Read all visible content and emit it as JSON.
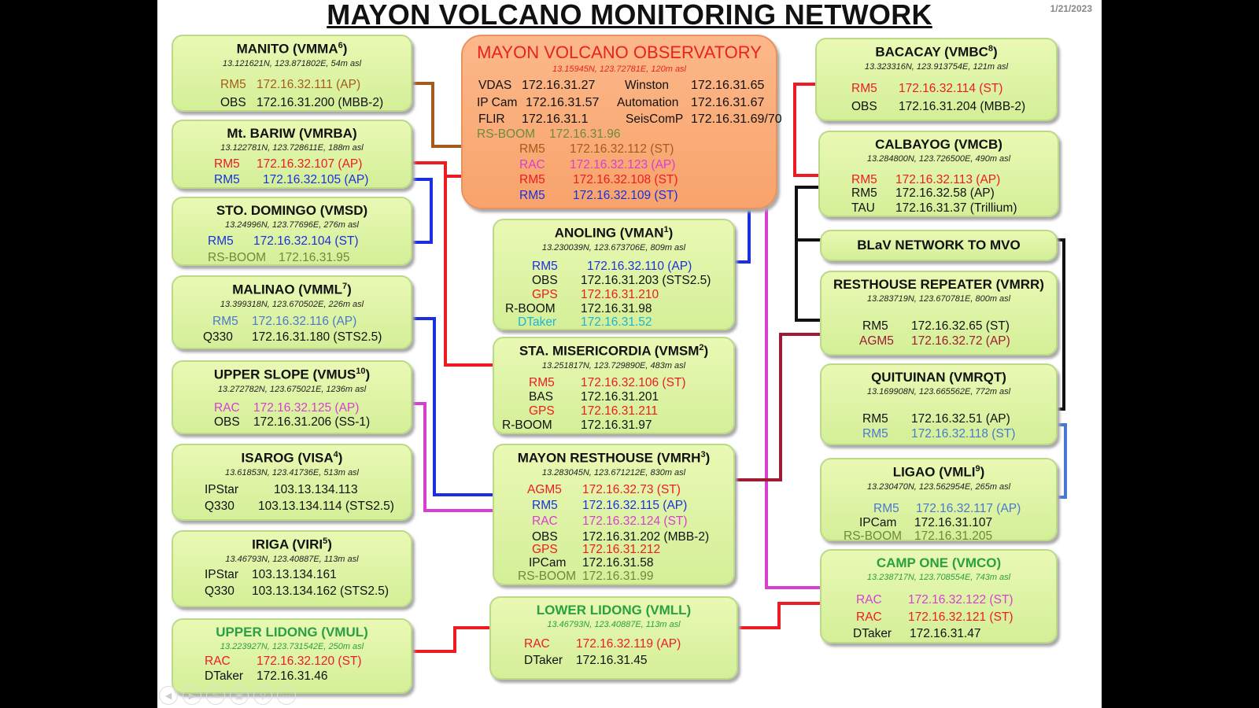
{
  "title": "MAYON VOLCANO MONITORING NETWORK",
  "date": "1/21/2023",
  "colors": {
    "black": "#111111",
    "red": "#ee1b22",
    "blue": "#1a2fe0",
    "lblue": "#4a78d0",
    "brown": "#a35c1b",
    "olive": "#6d8a3a",
    "magenta": "#d63fd0",
    "cyan": "#1fb3d6",
    "darkred": "#9e1b33",
    "station_fill": "#dff5a6",
    "observatory_fill": "#fba978"
  },
  "observatory": {
    "name": "MAYON VOLCANO OBSERVATORY",
    "coords": "13.15945N, 123.72781E, 120m asl",
    "services": [
      {
        "label": "VDAS",
        "value": "172.16.31.27"
      },
      {
        "label": "Winston",
        "value": "172.16.31.65"
      },
      {
        "label": "IP Cam",
        "value": "172.16.31.57"
      },
      {
        "label": "Automation",
        "value": "172.16.31.67"
      },
      {
        "label": "FLIR",
        "value": "172.16.31.1"
      },
      {
        "label": "SeisComP",
        "value": "172.16.31.69/70"
      }
    ],
    "links": [
      {
        "label": "RS-BOOM",
        "value": "172.16.31.96"
      },
      {
        "label": "RM5",
        "value": "172.16.32.112 (ST)"
      },
      {
        "label": "RAC",
        "value": "172.16.32.123 (AP)"
      },
      {
        "label": "RM5",
        "value": "172.16.32.108 (ST)"
      },
      {
        "label": "RM5",
        "value": "172.16.32.109 (ST)"
      }
    ]
  },
  "stations": [
    {
      "name": "MANITO (VMMA",
      "sup": "6",
      "close": ")",
      "coords": "13.121621N, 123.871802E, 54m asl",
      "rows": [
        {
          "label": "RM5",
          "value": "172.16.32.111 (AP)"
        },
        {
          "label": "OBS",
          "value": "172.16.31.200 (MBB-2)"
        }
      ]
    },
    {
      "name": "Mt. BARIW (VMRBA)",
      "sup": "",
      "close": "",
      "coords": "13.122781N, 123.728611E, 188m asl",
      "rows": [
        {
          "label": "RM5",
          "value": "172.16.32.107 (AP)"
        },
        {
          "label": "RM5",
          "value": "172.16.32.105 (AP)"
        }
      ]
    },
    {
      "name": "STO. DOMINGO (VMSD)",
      "sup": "",
      "close": "",
      "coords": "13.24996N, 123.77696E, 276m asl",
      "rows": [
        {
          "label": "RM5",
          "value": "172.16.32.104 (ST)"
        },
        {
          "label": "RS-BOOM",
          "value": "172.16.31.95"
        }
      ]
    },
    {
      "name": "MALINAO (VMML",
      "sup": "7",
      "close": ")",
      "coords": "13.399318N, 123.670502E, 226m asl",
      "rows": [
        {
          "label": "RM5",
          "value": "172.16.32.116 (AP)"
        },
        {
          "label": "Q330",
          "value": "172.16.31.180 (STS2.5)"
        }
      ]
    },
    {
      "name": "UPPER SLOPE (VMUS",
      "sup": "10",
      "close": ")",
      "coords": "13.272782N, 123.675021E, 1236m asl",
      "rows": [
        {
          "label": "RAC",
          "value": "172.16.32.125 (AP)"
        },
        {
          "label": "OBS",
          "value": "172.16.31.206 (SS-1)"
        }
      ]
    },
    {
      "name": "ISAROG (VISA",
      "sup": "4",
      "close": ")",
      "coords": "13.61853N, 123.41736E, 513m asl",
      "rows": [
        {
          "label": "IPStar",
          "value": "103.13.134.113"
        },
        {
          "label": "Q330",
          "value": "103.13.134.114 (STS2.5)"
        }
      ]
    },
    {
      "name": "IRIGA (VIRI",
      "sup": "5",
      "close": ")",
      "coords": "13.46793N, 123.40887E, 113m asl",
      "rows": [
        {
          "label": "IPStar",
          "value": "103.13.134.161"
        },
        {
          "label": "Q330",
          "value": "103.13.134.162 (STS2.5)"
        }
      ]
    },
    {
      "name": "UPPER LIDONG (VMUL)",
      "sup": "",
      "close": "",
      "coords": "13.223927N, 123.731542E, 250m asl",
      "rows": [
        {
          "label": "RAC",
          "value": "172.16.32.120 (ST)"
        },
        {
          "label": "DTaker",
          "value": "172.16.31.46"
        }
      ]
    },
    {
      "name": "ANOLING (VMAN",
      "sup": "1",
      "close": ")",
      "coords": "13.230039N, 123.673706E, 809m asl",
      "rows": [
        {
          "label": "RM5",
          "value": "172.16.32.110 (AP)"
        },
        {
          "label": "OBS",
          "value": "172.16.31.203 (STS2.5)"
        },
        {
          "label": "GPS",
          "value": "172.16.31.210"
        },
        {
          "label": "R-BOOM",
          "value": "172.16.31.98"
        },
        {
          "label": "DTaker",
          "value": "172.16.31.52"
        }
      ]
    },
    {
      "name": "STA. MISERICORDIA (VMSM",
      "sup": "2",
      "close": ")",
      "coords": "13.251817N, 123.729890E, 483m asl",
      "rows": [
        {
          "label": "RM5",
          "value": "172.16.32.106 (ST)"
        },
        {
          "label": "BAS",
          "value": "172.16.31.201"
        },
        {
          "label": "GPS",
          "value": "172.16.31.211"
        },
        {
          "label": "R-BOOM",
          "value": "172.16.31.97"
        }
      ]
    },
    {
      "name": "MAYON RESTHOUSE (VMRH",
      "sup": "3",
      "close": ")",
      "coords": "13.283045N, 123.671212E, 830m asl",
      "rows": [
        {
          "label": "AGM5",
          "value": "172.16.32.73 (ST)"
        },
        {
          "label": "RM5",
          "value": "172.16.32.115 (AP)"
        },
        {
          "label": "RAC",
          "value": "172.16.32.124 (ST)"
        },
        {
          "label": "OBS",
          "value": "172.16.31.202 (MBB-2)"
        },
        {
          "label": "GPS",
          "value": "172.16.31.212"
        },
        {
          "label": "IPCam",
          "value": "172.16.31.58"
        },
        {
          "label": "RS-BOOM",
          "value": "172.16.31.99"
        }
      ]
    },
    {
      "name": "LOWER LIDONG (VMLL)",
      "sup": "",
      "close": "",
      "coords": "13.46793N, 123.40887E, 113m asl",
      "rows": [
        {
          "label": "RAC",
          "value": "172.16.32.119 (AP)"
        },
        {
          "label": "DTaker",
          "value": "172.16.31.45"
        }
      ]
    },
    {
      "name": "BACACAY (VMBC",
      "sup": "8",
      "close": ")",
      "coords": "13.323316N, 123.913754E, 121m asl",
      "rows": [
        {
          "label": "RM5",
          "value": "172.16.32.114 (ST)"
        },
        {
          "label": "OBS",
          "value": "172.16.31.204 (MBB-2)"
        }
      ]
    },
    {
      "name": "CALBAYOG (VMCB)",
      "sup": "",
      "close": "",
      "coords": "13.284800N, 123.726500E, 490m asl",
      "rows": [
        {
          "label": "RM5",
          "value": "172.16.32.113 (AP)"
        },
        {
          "label": "RM5",
          "value": "172.16.32.58 (AP)"
        },
        {
          "label": "TAU",
          "value": "172.16.31.37 (Trillium)"
        }
      ]
    },
    {
      "name": "BLaV NETWORK TO MVO",
      "sup": "",
      "close": "",
      "coords": "",
      "rows": []
    },
    {
      "name": "RESTHOUSE REPEATER (VMRR)",
      "sup": "",
      "close": "",
      "coords": "13.283719N, 123.670781E, 800m asl",
      "rows": [
        {
          "label": "RM5",
          "value": "172.16.32.65 (ST)"
        },
        {
          "label": "AGM5",
          "value": "172.16.32.72 (AP)"
        }
      ]
    },
    {
      "name": "QUITUINAN (VMRQT)",
      "sup": "",
      "close": "",
      "coords": "13.169908N, 123.665562E, 772m asl",
      "rows": [
        {
          "label": "RM5",
          "value": "172.16.32.51 (AP)"
        },
        {
          "label": "RM5",
          "value": "172.16.32.118 (ST)"
        }
      ]
    },
    {
      "name": "LIGAO (VMLI",
      "sup": "9",
      "close": ")",
      "coords": "13.230470N, 123.562954E, 265m asl",
      "rows": [
        {
          "label": "RM5",
          "value": "172.16.32.117 (AP)"
        },
        {
          "label": "IPCam",
          "value": "172.16.31.107"
        },
        {
          "label": "RS-BOOM",
          "value": "172.16.31.205"
        }
      ]
    },
    {
      "name": "CAMP ONE (VMCO)",
      "sup": "",
      "close": "",
      "coords": "13.238717N, 123.708554E, 743m asl",
      "rows": [
        {
          "label": "RAC",
          "value": "172.16.32.122 (ST)"
        },
        {
          "label": "RAC",
          "value": "172.16.32.121 (ST)"
        },
        {
          "label": "DTaker",
          "value": "172.16.31.47"
        }
      ]
    }
  ]
}
